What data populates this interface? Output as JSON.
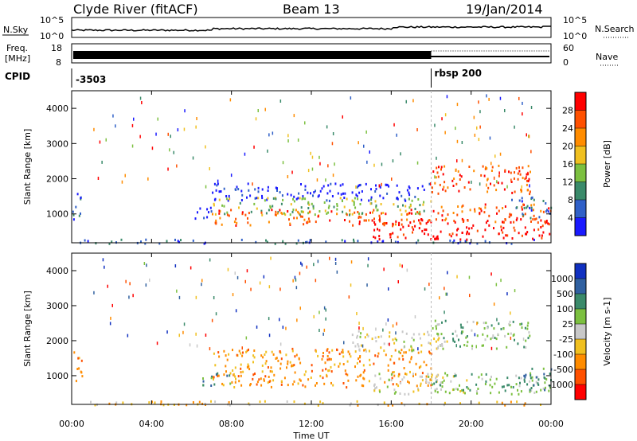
{
  "header": {
    "title": "Clyde River (fitACF)",
    "beam": "Beam 13",
    "date": "19/Jan/2014"
  },
  "strips": {
    "nsky": {
      "label": "N.Sky",
      "tick_top": "10^5",
      "tick_bottom": "10^0",
      "right_tick_top": "10^5",
      "right_tick_bottom": "10^0",
      "right_label": "N.Search"
    },
    "freq": {
      "label_line1": "Freq.",
      "label_line2": "[MHz]",
      "tick_top": "18",
      "tick_bottom": "8",
      "right_tick_top": "60",
      "right_tick_bottom": "0",
      "right_label": "Nave"
    },
    "cpid": {
      "label": "CPID",
      "program1": "-3503",
      "program2": "rbsp 200",
      "switch_hour": 18.0
    }
  },
  "chart_data": [
    {
      "type": "heatmap",
      "name": "power-panel",
      "ylabel": "Slant Range [km]",
      "xlabel": "Time UT",
      "xlim": [
        0,
        24
      ],
      "ylim": [
        180,
        4500
      ],
      "yticks": [
        "1000",
        "2000",
        "3000",
        "4000"
      ],
      "xticks": [
        "00:00",
        "04:00",
        "08:00",
        "12:00",
        "16:00",
        "20:00",
        "00:00"
      ],
      "colorbar": {
        "label": "Power [dB]",
        "ticks": [
          "4",
          "8",
          "12",
          "16",
          "20",
          "24",
          "28"
        ],
        "colors": [
          "#1a1aff",
          "#3060c8",
          "#3a8a6a",
          "#7cc040",
          "#f0c020",
          "#ff8c00",
          "#ff5000",
          "#ff0000"
        ]
      },
      "regions": [
        {
          "t0": 0.0,
          "t1": 0.5,
          "r0": 800,
          "r1": 1700,
          "level": 1
        },
        {
          "t0": 0.0,
          "t1": 24.0,
          "r0": 180,
          "r1": 300,
          "level": 1
        },
        {
          "t0": 6.0,
          "t1": 7.0,
          "r0": 900,
          "r1": 1300,
          "level": 0
        },
        {
          "t0": 7.0,
          "t1": 18.0,
          "r0": 1400,
          "r1": 1900,
          "level": 0
        },
        {
          "t0": 7.0,
          "t1": 18.0,
          "r0": 1000,
          "r1": 1500,
          "level": 3
        },
        {
          "t0": 7.0,
          "t1": 18.0,
          "r0": 700,
          "r1": 1150,
          "level": 6
        },
        {
          "t0": 15.0,
          "t1": 24.0,
          "r0": 300,
          "r1": 900,
          "level": 7
        },
        {
          "t0": 18.0,
          "t1": 24.0,
          "r0": 800,
          "r1": 1300,
          "level": 6
        },
        {
          "t0": 18.0,
          "t1": 23.0,
          "r0": 1600,
          "r1": 2400,
          "level": 6
        },
        {
          "t0": 22.0,
          "t1": 24.0,
          "r0": 900,
          "r1": 1500,
          "level": 1
        }
      ]
    },
    {
      "type": "heatmap",
      "name": "velocity-panel",
      "ylabel": "Slant Range [km]",
      "xlabel": "Time UT",
      "xlim": [
        0,
        24
      ],
      "ylim": [
        180,
        4500
      ],
      "yticks": [
        "1000",
        "2000",
        "3000",
        "4000"
      ],
      "xticks": [
        "00:00",
        "04:00",
        "08:00",
        "12:00",
        "16:00",
        "20:00",
        "00:00"
      ],
      "colorbar": {
        "label": "Velocity [m s-1]",
        "ticks": [
          "1000",
          "500",
          "100",
          "25",
          "-25",
          "-100",
          "-500",
          "-1000"
        ],
        "colors": [
          "#1030c0",
          "#3060a0",
          "#3a8a6a",
          "#7cc040",
          "#c8c8c8",
          "#f0c020",
          "#ff8c00",
          "#ff5000",
          "#ff0000"
        ]
      },
      "regions": [
        {
          "t0": 0.0,
          "t1": 0.5,
          "r0": 800,
          "r1": 1700,
          "level": 6
        },
        {
          "t0": 0.0,
          "t1": 24.0,
          "r0": 180,
          "r1": 300,
          "level": 5
        },
        {
          "t0": 7.0,
          "t1": 18.0,
          "r0": 700,
          "r1": 1800,
          "level": 6
        },
        {
          "t0": 6.5,
          "t1": 8.0,
          "r0": 700,
          "r1": 1100,
          "level": 2
        },
        {
          "t0": 15.0,
          "t1": 20.0,
          "r0": 500,
          "r1": 1100,
          "level": 4
        },
        {
          "t0": 18.0,
          "t1": 24.0,
          "r0": 500,
          "r1": 1100,
          "level": 3
        },
        {
          "t0": 22.5,
          "t1": 24.0,
          "r0": 600,
          "r1": 1300,
          "level": 2
        },
        {
          "t0": 14.0,
          "t1": 19.0,
          "r0": 1700,
          "r1": 2300,
          "level": 4
        },
        {
          "t0": 18.0,
          "t1": 23.0,
          "r0": 1800,
          "r1": 2600,
          "level": 3
        }
      ]
    }
  ]
}
